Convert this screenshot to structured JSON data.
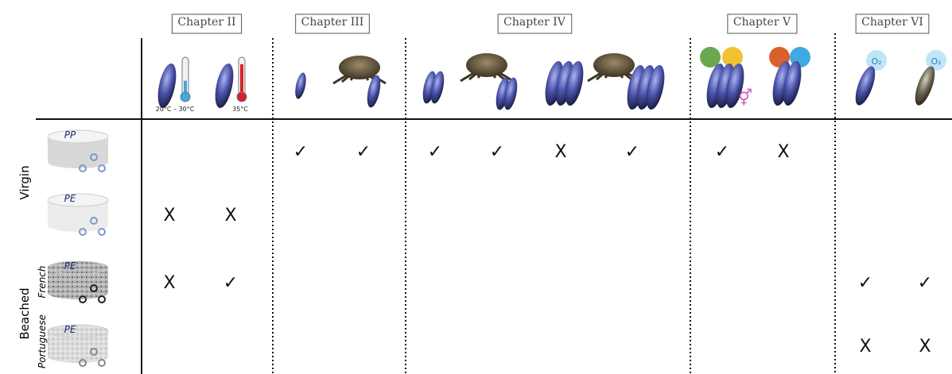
{
  "chapters": [
    "Chapter II",
    "Chapter III",
    "Chapter IV",
    "Chapter V",
    "Chapter VI"
  ],
  "temperature_labels": [
    "20°C – 30°C",
    "35°C"
  ],
  "oxygen_label": "O₂",
  "row_groups": [
    "Virgin",
    "Beached"
  ],
  "origins": [
    "French",
    "Portuguese"
  ],
  "rows": [
    {
      "polymer": "PP",
      "cells": [
        null,
        null,
        "✓",
        "✓",
        "✓",
        "✓",
        "X",
        "✓",
        "✓",
        "X",
        null,
        null
      ]
    },
    {
      "polymer": "PE",
      "cells": [
        "X",
        "X",
        null,
        null,
        null,
        null,
        null,
        null,
        null,
        null,
        null,
        null
      ]
    },
    {
      "polymer": "PE",
      "cells": [
        "X",
        "✓",
        null,
        null,
        null,
        null,
        null,
        null,
        null,
        null,
        "✓",
        "✓"
      ]
    },
    {
      "polymer": "PE",
      "cells": [
        null,
        null,
        null,
        null,
        null,
        null,
        null,
        null,
        null,
        null,
        "X",
        "X"
      ]
    }
  ]
}
